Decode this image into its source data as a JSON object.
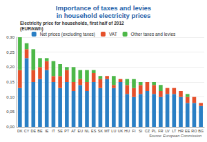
{
  "chart_data": {
    "type": "bar",
    "title": "Importance of taxes and levies\nin household electricity prices",
    "subtitle": "Electricity price for households, first half of 2012\n(EUR/kWh)",
    "source": "Source: European Commission",
    "categories": [
      "DK",
      "CY",
      "DE",
      "BE",
      "IE",
      "IT",
      "SE",
      "PT",
      "AT",
      "EU",
      "NL",
      "ES",
      "SK",
      "MT",
      "LU",
      "UK",
      "HU",
      "FI",
      "SI",
      "CZ",
      "PL",
      "FR",
      "LV",
      "LT",
      "HR",
      "EE",
      "RO",
      "BG"
    ],
    "series": [
      {
        "name": "Net prices (excluding taxes)",
        "color": "#2a7fc4",
        "values": [
          0.13,
          0.23,
          0.15,
          0.16,
          0.19,
          0.15,
          0.13,
          0.15,
          0.12,
          0.14,
          0.12,
          0.15,
          0.13,
          0.16,
          0.13,
          0.15,
          0.11,
          0.1,
          0.11,
          0.12,
          0.11,
          0.1,
          0.11,
          0.11,
          0.1,
          0.08,
          0.08,
          0.07
        ]
      },
      {
        "name": "VAT",
        "color": "#e5502b",
        "values": [
          0.06,
          0.03,
          0.04,
          0.04,
          0.03,
          0.02,
          0.04,
          0.04,
          0.03,
          0.02,
          0.03,
          0.03,
          0.03,
          0.01,
          0.01,
          0.01,
          0.03,
          0.03,
          0.03,
          0.03,
          0.03,
          0.02,
          0.02,
          0.02,
          0.02,
          0.02,
          0.02,
          0.01
        ]
      },
      {
        "name": "Other taxes and levies",
        "color": "#4db848",
        "values": [
          0.11,
          0.02,
          0.07,
          0.03,
          0.01,
          0.05,
          0.04,
          0.01,
          0.05,
          0.03,
          0.04,
          0.01,
          0.01,
          0.0,
          0.03,
          0.0,
          0.02,
          0.03,
          0.01,
          0.0,
          0.01,
          0.02,
          0.0,
          0.0,
          0.0,
          0.01,
          0.0,
          0.0
        ]
      }
    ],
    "ylim": [
      0,
      0.3
    ],
    "yticks": [
      {
        "value": 0,
        "label": "0,00"
      },
      {
        "value": 0.05,
        "label": "0,05"
      },
      {
        "value": 0.1,
        "label": "0,10"
      },
      {
        "value": 0.15,
        "label": "0,15"
      },
      {
        "value": 0.2,
        "label": "0,20"
      },
      {
        "value": 0.25,
        "label": "0,25"
      },
      {
        "value": 0.3,
        "label": "0,30"
      }
    ],
    "stacked": true,
    "grid": true,
    "legend": "top"
  }
}
